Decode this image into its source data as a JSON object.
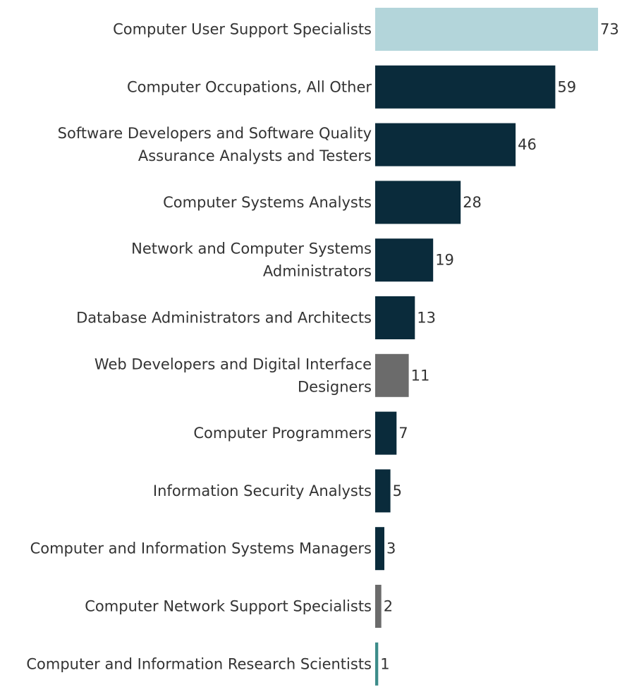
{
  "chart_data": {
    "type": "bar",
    "orientation": "horizontal",
    "title": "",
    "xlabel": "",
    "ylabel": "",
    "xlim": [
      0,
      73
    ],
    "grid": false,
    "legend": "none",
    "colors": {
      "highlight": "#b3d5da",
      "default": "#0a2b3b",
      "gray": "#6b6b6b",
      "teal": "#3d8c8a"
    },
    "bars": [
      {
        "label_lines": [
          "Computer User Support Specialists"
        ],
        "value": 73,
        "label": "73",
        "color": "#b3d5da"
      },
      {
        "label_lines": [
          "Computer Occupations, All Other"
        ],
        "value": 59,
        "label": "59",
        "color": "#0a2b3b"
      },
      {
        "label_lines": [
          "Software Developers and Software Quality",
          "Assurance Analysts and Testers"
        ],
        "value": 46,
        "label": "46",
        "color": "#0a2b3b"
      },
      {
        "label_lines": [
          "Computer Systems Analysts"
        ],
        "value": 28,
        "label": "28",
        "color": "#0a2b3b"
      },
      {
        "label_lines": [
          "Network and Computer Systems",
          "Administrators"
        ],
        "value": 19,
        "label": "19",
        "color": "#0a2b3b"
      },
      {
        "label_lines": [
          "Database Administrators and Architects"
        ],
        "value": 13,
        "label": "13",
        "color": "#0a2b3b"
      },
      {
        "label_lines": [
          "Web Developers and Digital Interface",
          "Designers"
        ],
        "value": 11,
        "label": "11",
        "color": "#6b6b6b"
      },
      {
        "label_lines": [
          "Computer Programmers"
        ],
        "value": 7,
        "label": "7",
        "color": "#0a2b3b"
      },
      {
        "label_lines": [
          "Information Security Analysts"
        ],
        "value": 5,
        "label": "5",
        "color": "#0a2b3b"
      },
      {
        "label_lines": [
          "Computer and Information Systems Managers"
        ],
        "value": 3,
        "label": "3",
        "color": "#0a2b3b"
      },
      {
        "label_lines": [
          "Computer Network Support Specialists"
        ],
        "value": 2,
        "label": "2",
        "color": "#6b6b6b"
      },
      {
        "label_lines": [
          "Computer and Information Research Scientists"
        ],
        "value": 1,
        "label": "1",
        "color": "#3d8c8a"
      }
    ]
  }
}
